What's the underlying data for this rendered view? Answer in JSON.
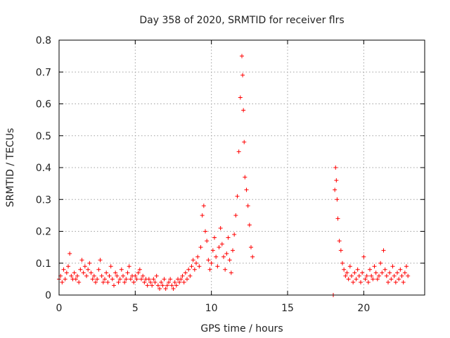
{
  "chart_data": {
    "type": "scatter",
    "title": "Day 358 of 2020, SRMTID for receiver flrs",
    "xlabel": "GPS time / hours",
    "ylabel": "SRMTID / TECUs",
    "xlim": [
      0,
      24
    ],
    "ylim": [
      0,
      0.8
    ],
    "x_ticks": [
      "0",
      "5",
      "10",
      "15",
      "20"
    ],
    "y_ticks": [
      "0",
      "0.1",
      "0.2",
      "0.3",
      "0.4",
      "0.5",
      "0.6",
      "0.7",
      "0.8"
    ],
    "grid": true,
    "marker": "+",
    "color": "#ff0000",
    "series": [
      {
        "name": "SRMTID",
        "points": [
          [
            0.0,
            0.05
          ],
          [
            0.1,
            0.06
          ],
          [
            0.2,
            0.04
          ],
          [
            0.3,
            0.08
          ],
          [
            0.4,
            0.05
          ],
          [
            0.5,
            0.07
          ],
          [
            0.6,
            0.09
          ],
          [
            0.7,
            0.13
          ],
          [
            0.8,
            0.06
          ],
          [
            0.9,
            0.05
          ],
          [
            1.0,
            0.07
          ],
          [
            1.1,
            0.05
          ],
          [
            1.2,
            0.06
          ],
          [
            1.3,
            0.04
          ],
          [
            1.4,
            0.08
          ],
          [
            1.5,
            0.11
          ],
          [
            1.6,
            0.07
          ],
          [
            1.7,
            0.09
          ],
          [
            1.8,
            0.06
          ],
          [
            1.9,
            0.08
          ],
          [
            2.0,
            0.1
          ],
          [
            2.1,
            0.07
          ],
          [
            2.2,
            0.05
          ],
          [
            2.3,
            0.06
          ],
          [
            2.4,
            0.04
          ],
          [
            2.5,
            0.05
          ],
          [
            2.6,
            0.08
          ],
          [
            2.7,
            0.11
          ],
          [
            2.8,
            0.06
          ],
          [
            2.9,
            0.04
          ],
          [
            3.0,
            0.05
          ],
          [
            3.1,
            0.07
          ],
          [
            3.2,
            0.04
          ],
          [
            3.3,
            0.06
          ],
          [
            3.4,
            0.09
          ],
          [
            3.5,
            0.05
          ],
          [
            3.6,
            0.03
          ],
          [
            3.7,
            0.07
          ],
          [
            3.8,
            0.06
          ],
          [
            3.9,
            0.04
          ],
          [
            4.0,
            0.05
          ],
          [
            4.1,
            0.08
          ],
          [
            4.2,
            0.06
          ],
          [
            4.3,
            0.04
          ],
          [
            4.4,
            0.05
          ],
          [
            4.5,
            0.07
          ],
          [
            4.6,
            0.09
          ],
          [
            4.7,
            0.05
          ],
          [
            4.8,
            0.06
          ],
          [
            4.9,
            0.04
          ],
          [
            5.0,
            0.06
          ],
          [
            5.1,
            0.05
          ],
          [
            5.2,
            0.07
          ],
          [
            5.3,
            0.08
          ],
          [
            5.4,
            0.05
          ],
          [
            5.5,
            0.06
          ],
          [
            5.6,
            0.04
          ],
          [
            5.7,
            0.05
          ],
          [
            5.8,
            0.03
          ],
          [
            5.9,
            0.05
          ],
          [
            6.0,
            0.04
          ],
          [
            6.1,
            0.03
          ],
          [
            6.2,
            0.05
          ],
          [
            6.3,
            0.04
          ],
          [
            6.4,
            0.06
          ],
          [
            6.5,
            0.03
          ],
          [
            6.6,
            0.02
          ],
          [
            6.7,
            0.04
          ],
          [
            6.8,
            0.03
          ],
          [
            6.9,
            0.05
          ],
          [
            7.0,
            0.02
          ],
          [
            7.1,
            0.03
          ],
          [
            7.2,
            0.04
          ],
          [
            7.3,
            0.05
          ],
          [
            7.4,
            0.03
          ],
          [
            7.5,
            0.02
          ],
          [
            7.6,
            0.04
          ],
          [
            7.7,
            0.03
          ],
          [
            7.8,
            0.05
          ],
          [
            7.9,
            0.04
          ],
          [
            8.0,
            0.05
          ],
          [
            8.1,
            0.06
          ],
          [
            8.2,
            0.04
          ],
          [
            8.3,
            0.07
          ],
          [
            8.4,
            0.05
          ],
          [
            8.5,
            0.08
          ],
          [
            8.6,
            0.06
          ],
          [
            8.7,
            0.09
          ],
          [
            8.8,
            0.11
          ],
          [
            8.9,
            0.08
          ],
          [
            9.0,
            0.1
          ],
          [
            9.1,
            0.12
          ],
          [
            9.2,
            0.09
          ],
          [
            9.3,
            0.15
          ],
          [
            9.4,
            0.25
          ],
          [
            9.5,
            0.28
          ],
          [
            9.6,
            0.2
          ],
          [
            9.7,
            0.17
          ],
          [
            9.8,
            0.11
          ],
          [
            9.9,
            0.08
          ],
          [
            10.0,
            0.1
          ],
          [
            10.1,
            0.14
          ],
          [
            10.2,
            0.18
          ],
          [
            10.3,
            0.12
          ],
          [
            10.4,
            0.09
          ],
          [
            10.5,
            0.15
          ],
          [
            10.6,
            0.21
          ],
          [
            10.7,
            0.16
          ],
          [
            10.8,
            0.12
          ],
          [
            10.9,
            0.08
          ],
          [
            11.0,
            0.13
          ],
          [
            11.1,
            0.18
          ],
          [
            11.2,
            0.11
          ],
          [
            11.3,
            0.07
          ],
          [
            11.4,
            0.14
          ],
          [
            11.5,
            0.19
          ],
          [
            11.6,
            0.25
          ],
          [
            11.7,
            0.31
          ],
          [
            11.8,
            0.45
          ],
          [
            11.9,
            0.62
          ],
          [
            12.0,
            0.75
          ],
          [
            12.05,
            0.69
          ],
          [
            12.1,
            0.58
          ],
          [
            12.15,
            0.48
          ],
          [
            12.2,
            0.37
          ],
          [
            12.3,
            0.33
          ],
          [
            12.4,
            0.28
          ],
          [
            12.5,
            0.22
          ],
          [
            12.6,
            0.15
          ],
          [
            12.7,
            0.12
          ],
          [
            18.0,
            0.0
          ],
          [
            18.1,
            0.33
          ],
          [
            18.15,
            0.4
          ],
          [
            18.2,
            0.36
          ],
          [
            18.25,
            0.3
          ],
          [
            18.3,
            0.24
          ],
          [
            18.4,
            0.17
          ],
          [
            18.5,
            0.14
          ],
          [
            18.6,
            0.1
          ],
          [
            18.7,
            0.08
          ],
          [
            18.8,
            0.06
          ],
          [
            18.9,
            0.07
          ],
          [
            19.0,
            0.05
          ],
          [
            19.1,
            0.09
          ],
          [
            19.2,
            0.06
          ],
          [
            19.3,
            0.04
          ],
          [
            19.4,
            0.07
          ],
          [
            19.5,
            0.05
          ],
          [
            19.6,
            0.08
          ],
          [
            19.7,
            0.06
          ],
          [
            19.8,
            0.04
          ],
          [
            19.9,
            0.07
          ],
          [
            20.0,
            0.12
          ],
          [
            20.1,
            0.05
          ],
          [
            20.2,
            0.06
          ],
          [
            20.3,
            0.04
          ],
          [
            20.4,
            0.08
          ],
          [
            20.5,
            0.06
          ],
          [
            20.6,
            0.05
          ],
          [
            20.7,
            0.09
          ],
          [
            20.8,
            0.07
          ],
          [
            20.9,
            0.05
          ],
          [
            21.0,
            0.06
          ],
          [
            21.1,
            0.1
          ],
          [
            21.2,
            0.07
          ],
          [
            21.3,
            0.14
          ],
          [
            21.4,
            0.08
          ],
          [
            21.5,
            0.06
          ],
          [
            21.6,
            0.04
          ],
          [
            21.7,
            0.07
          ],
          [
            21.8,
            0.05
          ],
          [
            21.9,
            0.09
          ],
          [
            22.0,
            0.06
          ],
          [
            22.1,
            0.04
          ],
          [
            22.2,
            0.07
          ],
          [
            22.3,
            0.05
          ],
          [
            22.4,
            0.08
          ],
          [
            22.5,
            0.06
          ],
          [
            22.6,
            0.04
          ],
          [
            22.7,
            0.07
          ],
          [
            22.8,
            0.09
          ],
          [
            22.9,
            0.06
          ]
        ]
      }
    ]
  }
}
